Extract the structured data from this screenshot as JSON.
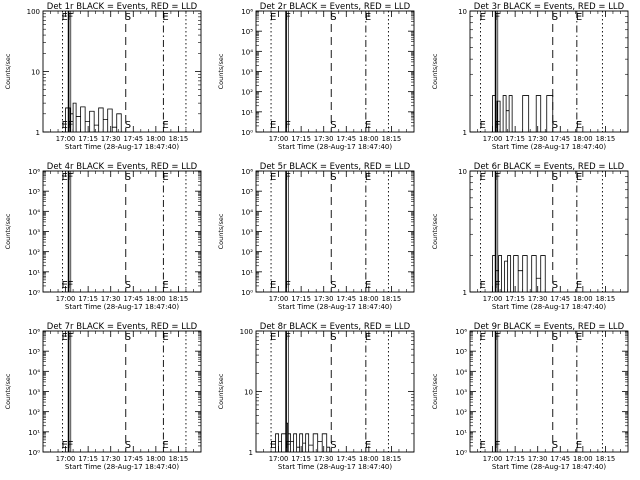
{
  "chart_data": [
    {
      "type": "line",
      "title": "Det 1r BLACK = Events, RED = LLD",
      "xlabel": "Start Time (28-Aug-17 18:47:40)",
      "ylabel": "Counts/sec",
      "xticks": [
        "17:00",
        "17:15",
        "17:30",
        "17:45",
        "18:00",
        "18:15"
      ],
      "yscale": "log",
      "ylim": [
        1,
        100
      ],
      "yticks": [
        {
          "v": 1,
          "label": "1"
        },
        {
          "v": 10,
          "label": "10"
        },
        {
          "v": 100,
          "label": "100"
        }
      ],
      "markers": [
        {
          "t": "16:58",
          "letter": "E",
          "style": "dotted"
        },
        {
          "t": "17:02",
          "letter": "F",
          "style": "solid"
        },
        {
          "t": "17:40",
          "letter": "S",
          "style": "dashed"
        },
        {
          "t": "18:05",
          "letter": "E",
          "style": "dashdot"
        },
        {
          "t": "18:20",
          "letter": "",
          "style": "dotted"
        }
      ],
      "series": [
        {
          "color": "#000000",
          "x": [
            "16:58",
            "17:00",
            "17:03",
            "17:05",
            "17:07",
            "17:10",
            "17:13",
            "17:16",
            "17:19",
            "17:22",
            "17:25",
            "17:28",
            "17:31",
            "17:34",
            "17:37"
          ],
          "y": [
            1,
            2.5,
            2,
            3,
            1.8,
            2.6,
            1.5,
            2.2,
            1.3,
            2.5,
            1.6,
            2.4,
            1.2,
            2,
            1
          ]
        }
      ]
    },
    {
      "type": "line",
      "title": "Det 2r BLACK = Events, RED = LLD",
      "xlabel": "Start Time (28-Aug-17 18:47:40)",
      "ylabel": "Counts/sec",
      "xticks": [
        "17:00",
        "17:15",
        "17:30",
        "17:45",
        "18:00",
        "18:15"
      ],
      "yscale": "log",
      "ylim": [
        1,
        1000000
      ],
      "yticks": [
        {
          "v": 1,
          "label": "10⁰"
        },
        {
          "v": 10,
          "label": "10¹"
        },
        {
          "v": 100,
          "label": "10²"
        },
        {
          "v": 1000,
          "label": "10³"
        },
        {
          "v": 10000,
          "label": "10⁴"
        },
        {
          "v": 100000,
          "label": "10⁵"
        },
        {
          "v": 1000000,
          "label": "10⁶"
        }
      ],
      "markers": [
        {
          "t": "16:55",
          "letter": "E",
          "style": "dotted"
        },
        {
          "t": "17:05",
          "letter": "F",
          "style": "solid"
        },
        {
          "t": "17:35",
          "letter": "S",
          "style": "dashed"
        },
        {
          "t": "17:58",
          "letter": "E",
          "style": "dashdot"
        },
        {
          "t": "18:13",
          "letter": "",
          "style": "dotted"
        }
      ],
      "series": []
    },
    {
      "type": "line",
      "title": "Det 3r BLACK = Events, RED = LLD",
      "xlabel": "Start Time (28-Aug-17 18:47:40)",
      "ylabel": "Counts/sec",
      "xticks": [
        "17:00",
        "17:15",
        "17:30",
        "17:45",
        "18:00",
        "18:15"
      ],
      "yscale": "log",
      "ylim": [
        1,
        10
      ],
      "yticks": [
        {
          "v": 1,
          "label": "1"
        },
        {
          "v": 10,
          "label": "10"
        }
      ],
      "markers": [
        {
          "t": "16:52",
          "letter": "E",
          "style": "dotted"
        },
        {
          "t": "17:02",
          "letter": "F",
          "style": "solid"
        },
        {
          "t": "17:40",
          "letter": "S",
          "style": "dashed"
        },
        {
          "t": "17:56",
          "letter": "E",
          "style": "dashdot"
        },
        {
          "t": "18:13",
          "letter": "",
          "style": "dotted"
        }
      ],
      "series": [
        {
          "color": "#000000",
          "x": [
            "16:59",
            "17:00",
            "17:02",
            "17:03",
            "17:05",
            "17:07",
            "17:09",
            "17:11",
            "17:13",
            "17:16",
            "17:20",
            "17:24",
            "17:29",
            "17:32",
            "17:36",
            "17:40"
          ],
          "y": [
            1,
            2,
            1,
            1.8,
            1,
            2,
            1.5,
            2,
            1,
            1,
            2,
            1,
            2,
            1,
            2,
            1
          ]
        }
      ]
    },
    {
      "type": "line",
      "title": "Det 4r BLACK = Events, RED = LLD",
      "xlabel": "Start Time (28-Aug-17 18:47:40)",
      "ylabel": "Counts/sec",
      "xticks": [
        "17:00",
        "17:15",
        "17:30",
        "17:45",
        "18:00",
        "18:15"
      ],
      "yscale": "log",
      "ylim": [
        1,
        1000000
      ],
      "yticks": [
        {
          "v": 1,
          "label": "10⁰"
        },
        {
          "v": 10,
          "label": "10¹"
        },
        {
          "v": 100,
          "label": "10²"
        },
        {
          "v": 1000,
          "label": "10³"
        },
        {
          "v": 10000,
          "label": "10⁴"
        },
        {
          "v": 100000,
          "label": "10⁵"
        },
        {
          "v": 1000000,
          "label": "10⁶"
        }
      ],
      "markers": [
        {
          "t": "16:58",
          "letter": "E",
          "style": "dotted"
        },
        {
          "t": "17:02",
          "letter": "F",
          "style": "solid"
        },
        {
          "t": "17:40",
          "letter": "S",
          "style": "dashed"
        },
        {
          "t": "18:05",
          "letter": "E",
          "style": "dashdot"
        },
        {
          "t": "18:20",
          "letter": "",
          "style": "dotted"
        }
      ],
      "series": []
    },
    {
      "type": "line",
      "title": "Det 5r BLACK = Events, RED = LLD",
      "xlabel": "Start Time (28-Aug-17 18:47:40)",
      "ylabel": "Counts/sec",
      "xticks": [
        "17:00",
        "17:15",
        "17:30",
        "17:45",
        "18:00",
        "18:15"
      ],
      "yscale": "log",
      "ylim": [
        1,
        1000000
      ],
      "yticks": [
        {
          "v": 1,
          "label": "10⁰"
        },
        {
          "v": 10,
          "label": "10¹"
        },
        {
          "v": 100,
          "label": "10²"
        },
        {
          "v": 1000,
          "label": "10³"
        },
        {
          "v": 10000,
          "label": "10⁴"
        },
        {
          "v": 100000,
          "label": "10⁵"
        },
        {
          "v": 1000000,
          "label": "10⁶"
        }
      ],
      "markers": [
        {
          "t": "16:55",
          "letter": "E",
          "style": "dotted"
        },
        {
          "t": "17:05",
          "letter": "F",
          "style": "solid"
        },
        {
          "t": "17:35",
          "letter": "S",
          "style": "dashed"
        },
        {
          "t": "17:58",
          "letter": "E",
          "style": "dashdot"
        },
        {
          "t": "18:13",
          "letter": "",
          "style": "dotted"
        }
      ],
      "series": []
    },
    {
      "type": "line",
      "title": "Det 6r BLACK = Events, RED = LLD",
      "xlabel": "Start Time (28-Aug-17 18:47:40)",
      "ylabel": "Counts/sec",
      "xticks": [
        "17:00",
        "17:15",
        "17:30",
        "17:45",
        "18:00",
        "18:15"
      ],
      "yscale": "log",
      "ylim": [
        1,
        10
      ],
      "yticks": [
        {
          "v": 1,
          "label": "1"
        },
        {
          "v": 10,
          "label": "10"
        }
      ],
      "markers": [
        {
          "t": "16:52",
          "letter": "E",
          "style": "dotted"
        },
        {
          "t": "17:02",
          "letter": "F",
          "style": "solid"
        },
        {
          "t": "17:40",
          "letter": "S",
          "style": "dashed"
        },
        {
          "t": "17:56",
          "letter": "E",
          "style": "dashdot"
        },
        {
          "t": "18:13",
          "letter": "",
          "style": "dotted"
        }
      ],
      "series": [
        {
          "color": "#000000",
          "x": [
            "16:58",
            "17:00",
            "17:02",
            "17:04",
            "17:06",
            "17:08",
            "17:10",
            "17:12",
            "17:14",
            "17:17",
            "17:20",
            "17:23",
            "17:26",
            "17:29",
            "17:32",
            "17:35",
            "17:38"
          ],
          "y": [
            1,
            2,
            1.5,
            2,
            1,
            1.8,
            2,
            1,
            2,
            1.5,
            2,
            1,
            2,
            1.3,
            2,
            1,
            1
          ]
        }
      ]
    },
    {
      "type": "line",
      "title": "Det 7r BLACK = Events, RED = LLD",
      "xlabel": "Start Time (28-Aug-17 18:47:40)",
      "ylabel": "Counts/sec",
      "xticks": [
        "17:00",
        "17:15",
        "17:30",
        "17:45",
        "18:00",
        "18:15"
      ],
      "yscale": "log",
      "ylim": [
        1,
        1000000
      ],
      "yticks": [
        {
          "v": 1,
          "label": "10⁰"
        },
        {
          "v": 10,
          "label": "10¹"
        },
        {
          "v": 100,
          "label": "10²"
        },
        {
          "v": 1000,
          "label": "10³"
        },
        {
          "v": 10000,
          "label": "10⁴"
        },
        {
          "v": 100000,
          "label": "10⁵"
        },
        {
          "v": 1000000,
          "label": "10⁶"
        }
      ],
      "markers": [
        {
          "t": "16:58",
          "letter": "E",
          "style": "dotted"
        },
        {
          "t": "17:02",
          "letter": "F",
          "style": "solid"
        },
        {
          "t": "17:40",
          "letter": "S",
          "style": "dashed"
        },
        {
          "t": "18:05",
          "letter": "E",
          "style": "dashdot"
        },
        {
          "t": "18:20",
          "letter": "",
          "style": "dotted"
        }
      ],
      "series": []
    },
    {
      "type": "line",
      "title": "Det 8r BLACK = Events, RED = LLD",
      "xlabel": "Start Time (28-Aug-17 18:47:40)",
      "ylabel": "Counts/sec",
      "xticks": [
        "17:00",
        "17:15",
        "17:30",
        "17:45",
        "18:00",
        "18:15"
      ],
      "yscale": "log",
      "ylim": [
        1,
        100
      ],
      "yticks": [
        {
          "v": 1,
          "label": "1"
        },
        {
          "v": 10,
          "label": "10"
        },
        {
          "v": 100,
          "label": "100"
        }
      ],
      "markers": [
        {
          "t": "16:55",
          "letter": "E",
          "style": "dotted"
        },
        {
          "t": "17:05",
          "letter": "F",
          "style": "solid"
        },
        {
          "t": "17:35",
          "letter": "S",
          "style": "dashed"
        },
        {
          "t": "17:58",
          "letter": "E",
          "style": "dashdot"
        },
        {
          "t": "18:13",
          "letter": "",
          "style": "dotted"
        }
      ],
      "series": [
        {
          "color": "#000000",
          "x": [
            "16:56",
            "16:58",
            "17:00",
            "17:02",
            "17:05",
            "17:06",
            "17:08",
            "17:10",
            "17:12",
            "17:14",
            "17:16",
            "17:18",
            "17:20",
            "17:23",
            "17:26",
            "17:29",
            "17:32",
            "17:34"
          ],
          "y": [
            1,
            2,
            1.5,
            2,
            3,
            2,
            1.5,
            2,
            1.2,
            2,
            1.4,
            2,
            1.3,
            2,
            1.5,
            2,
            1.2,
            1
          ]
        }
      ]
    },
    {
      "type": "line",
      "title": "Det 9r BLACK = Events, RED = LLD",
      "xlabel": "Start Time (28-Aug-17 18:47:40)",
      "ylabel": "Counts/sec",
      "xticks": [
        "17:00",
        "17:15",
        "17:30",
        "17:45",
        "18:00",
        "18:15"
      ],
      "yscale": "log",
      "ylim": [
        1,
        1000000
      ],
      "yticks": [
        {
          "v": 1,
          "label": "10⁰"
        },
        {
          "v": 10,
          "label": "10¹"
        },
        {
          "v": 100,
          "label": "10²"
        },
        {
          "v": 1000,
          "label": "10³"
        },
        {
          "v": 10000,
          "label": "10⁴"
        },
        {
          "v": 100000,
          "label": "10⁵"
        },
        {
          "v": 1000000,
          "label": "10⁶"
        }
      ],
      "markers": [
        {
          "t": "16:52",
          "letter": "E",
          "style": "dotted"
        },
        {
          "t": "17:02",
          "letter": "F",
          "style": "solid"
        },
        {
          "t": "17:40",
          "letter": "S",
          "style": "dashed"
        },
        {
          "t": "17:56",
          "letter": "E",
          "style": "dashdot"
        },
        {
          "t": "18:13",
          "letter": "",
          "style": "dotted"
        }
      ],
      "series": []
    }
  ]
}
